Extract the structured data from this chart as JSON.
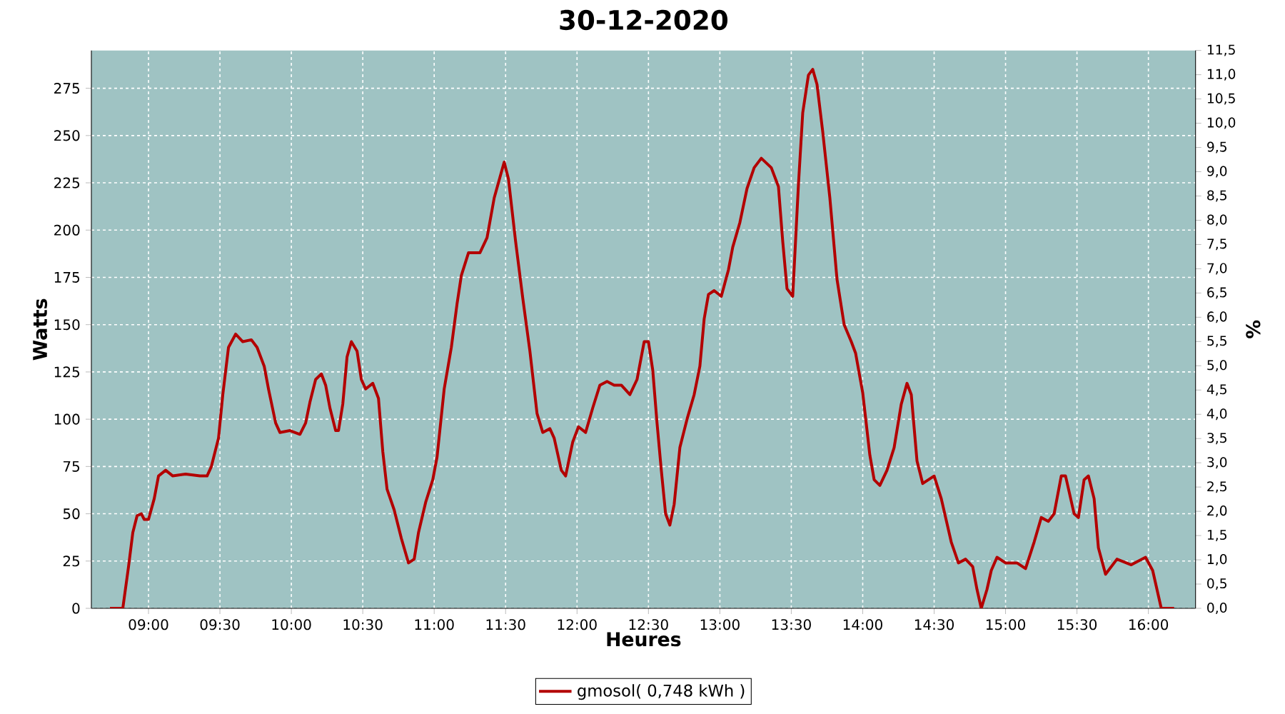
{
  "chart_data": {
    "type": "line",
    "title": "30-12-2020",
    "xlabel": "Heures",
    "ylabel": "Watts",
    "y2label": "%",
    "xlim": [
      8.6,
      16.33
    ],
    "ylim": [
      0,
      295
    ],
    "y2lim": [
      0,
      11.5
    ],
    "xticks": [
      {
        "value": 9,
        "label": "09:00"
      },
      {
        "value": 9.5,
        "label": "09:30"
      },
      {
        "value": 10,
        "label": "10:00"
      },
      {
        "value": 10.5,
        "label": "10:30"
      },
      {
        "value": 11,
        "label": "11:00"
      },
      {
        "value": 11.5,
        "label": "11:30"
      },
      {
        "value": 12,
        "label": "12:00"
      },
      {
        "value": 12.5,
        "label": "12:30"
      },
      {
        "value": 13,
        "label": "13:00"
      },
      {
        "value": 13.5,
        "label": "13:30"
      },
      {
        "value": 14,
        "label": "14:00"
      },
      {
        "value": 14.5,
        "label": "14:30"
      },
      {
        "value": 15,
        "label": "15:00"
      },
      {
        "value": 15.5,
        "label": "15:30"
      },
      {
        "value": 16,
        "label": "16:00"
      }
    ],
    "yticks": [
      0,
      25,
      50,
      75,
      100,
      125,
      150,
      175,
      200,
      225,
      250,
      275
    ],
    "y2ticks": [
      {
        "value": 0,
        "label": "0,0"
      },
      {
        "value": 0.5,
        "label": "0,5"
      },
      {
        "value": 1,
        "label": "1,0"
      },
      {
        "value": 1.5,
        "label": "1,5"
      },
      {
        "value": 2,
        "label": "2,0"
      },
      {
        "value": 2.5,
        "label": "2,5"
      },
      {
        "value": 3,
        "label": "3,0"
      },
      {
        "value": 3.5,
        "label": "3,5"
      },
      {
        "value": 4,
        "label": "4,0"
      },
      {
        "value": 4.5,
        "label": "4,5"
      },
      {
        "value": 5,
        "label": "5,0"
      },
      {
        "value": 5.5,
        "label": "5,5"
      },
      {
        "value": 6,
        "label": "6,0"
      },
      {
        "value": 6.5,
        "label": "6,5"
      },
      {
        "value": 7,
        "label": "7,0"
      },
      {
        "value": 7.5,
        "label": "7,5"
      },
      {
        "value": 8,
        "label": "8,0"
      },
      {
        "value": 8.5,
        "label": "8,5"
      },
      {
        "value": 9,
        "label": "9,0"
      },
      {
        "value": 9.5,
        "label": "9,5"
      },
      {
        "value": 10,
        "label": "10,0"
      },
      {
        "value": 10.5,
        "label": "10,5"
      },
      {
        "value": 11,
        "label": "11,0"
      },
      {
        "value": 11.5,
        "label": "11,5"
      }
    ],
    "grid": true,
    "legend": "bottom",
    "marker": "none",
    "line_style": "solid",
    "series": [
      {
        "name": "gmosol( 0,748 kWh )",
        "color": "#b30000",
        "x": [
          8.73,
          8.82,
          8.86,
          8.89,
          8.92,
          8.95,
          8.97,
          9.0,
          9.04,
          9.07,
          9.12,
          9.17,
          9.26,
          9.36,
          9.41,
          9.44,
          9.49,
          9.52,
          9.56,
          9.61,
          9.66,
          9.72,
          9.76,
          9.81,
          9.84,
          9.89,
          9.92,
          9.99,
          10.06,
          10.1,
          10.13,
          10.17,
          10.21,
          10.24,
          10.27,
          10.31,
          10.33,
          10.36,
          10.39,
          10.42,
          10.46,
          10.49,
          10.52,
          10.57,
          10.61,
          10.64,
          10.67,
          10.72,
          10.77,
          10.82,
          10.86,
          10.89,
          10.94,
          10.99,
          11.02,
          11.07,
          11.12,
          11.16,
          11.19,
          11.24,
          11.32,
          11.37,
          11.42,
          11.49,
          11.52,
          11.57,
          11.62,
          11.67,
          11.72,
          11.76,
          11.81,
          11.84,
          11.89,
          11.92,
          11.97,
          12.01,
          12.06,
          12.11,
          12.16,
          12.21,
          12.26,
          12.31,
          12.37,
          12.42,
          12.47,
          12.5,
          12.53,
          12.56,
          12.59,
          12.62,
          12.65,
          12.68,
          12.72,
          12.77,
          12.82,
          12.86,
          12.89,
          12.92,
          12.96,
          13.01,
          13.06,
          13.09,
          13.14,
          13.19,
          13.24,
          13.29,
          13.36,
          13.41,
          13.44,
          13.47,
          13.51,
          13.55,
          13.58,
          13.62,
          13.65,
          13.68,
          13.72,
          13.77,
          13.82,
          13.87,
          13.92,
          13.95,
          14.0,
          14.05,
          14.08,
          14.12,
          14.17,
          14.22,
          14.27,
          14.31,
          14.34,
          14.38,
          14.42,
          14.5,
          14.55,
          14.62,
          14.67,
          14.72,
          14.77,
          14.8,
          14.83,
          14.87,
          14.9,
          14.94,
          15.0,
          15.08,
          15.14,
          15.2,
          15.25,
          15.3,
          15.34,
          15.39,
          15.42,
          15.48,
          15.51,
          15.55,
          15.58,
          15.62,
          15.65,
          15.7,
          15.78,
          15.88,
          15.98,
          16.03,
          16.09,
          16.18
        ],
        "values": [
          0,
          0,
          22,
          40,
          49,
          50,
          47,
          47,
          58,
          70,
          73,
          70,
          71,
          70,
          70,
          75,
          90,
          113,
          138,
          145,
          141,
          142,
          138,
          128,
          116,
          98,
          93,
          94,
          92,
          98,
          109,
          121,
          124,
          118,
          106,
          94,
          94,
          108,
          133,
          141,
          136,
          121,
          116,
          119,
          111,
          83,
          63,
          52,
          37,
          24,
          26,
          40,
          56,
          68,
          80,
          116,
          138,
          161,
          176,
          188,
          188,
          196,
          217,
          236,
          227,
          194,
          164,
          136,
          103,
          93,
          95,
          90,
          73,
          70,
          88,
          96,
          93,
          106,
          118,
          120,
          118,
          118,
          113,
          121,
          141,
          141,
          126,
          98,
          73,
          50,
          44,
          55,
          85,
          100,
          113,
          128,
          153,
          166,
          168,
          165,
          179,
          191,
          204,
          222,
          233,
          238,
          233,
          223,
          194,
          169,
          165,
          224,
          262,
          282,
          285,
          277,
          252,
          217,
          174,
          150,
          141,
          135,
          114,
          81,
          68,
          65,
          73,
          85,
          108,
          119,
          113,
          78,
          66,
          70,
          58,
          35,
          24,
          26,
          22,
          10,
          0,
          10,
          20,
          27,
          24,
          24,
          21,
          35,
          48,
          46,
          50,
          70,
          70,
          50,
          48,
          68,
          70,
          58,
          32,
          18,
          26,
          23,
          27,
          20,
          0,
          0
        ]
      }
    ]
  }
}
